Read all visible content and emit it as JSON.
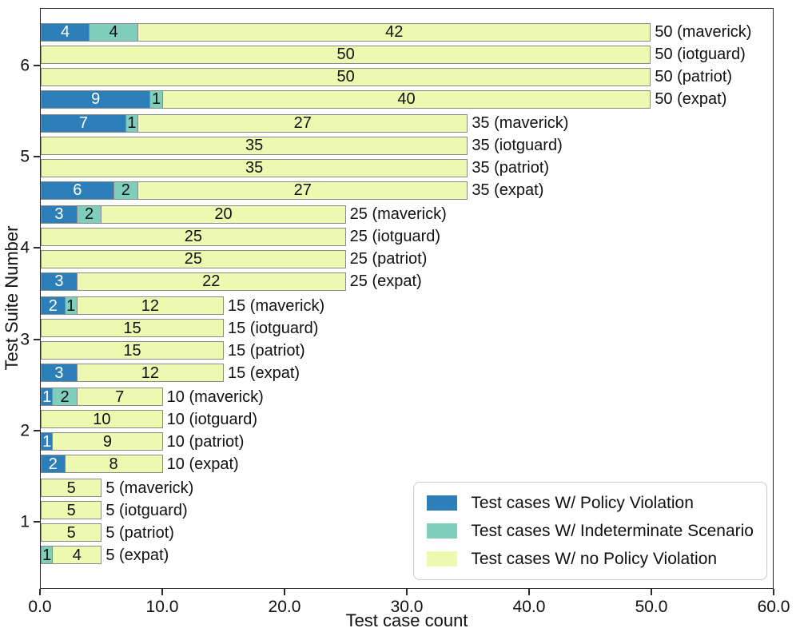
{
  "chart_data": {
    "type": "bar",
    "orientation": "horizontal",
    "stacked": true,
    "title": "",
    "xlabel": "Test case count",
    "ylabel": "Test Suite Number",
    "xlim": [
      0,
      60
    ],
    "grid": false,
    "legend_position": "lower right",
    "xticks": [
      {
        "value": 0,
        "label": "0.0"
      },
      {
        "value": 10,
        "label": "10.0"
      },
      {
        "value": 20,
        "label": "20.0"
      },
      {
        "value": 30,
        "label": "30.0"
      },
      {
        "value": 40,
        "label": "40.0"
      },
      {
        "value": 50,
        "label": "50.0"
      },
      {
        "value": 60,
        "label": "60.0"
      }
    ],
    "series_names": [
      "Test cases W/ Policy Violation",
      "Test cases W/ Indeterminate Scenario",
      "Test cases W/ no Policy Violation"
    ],
    "series_keys": [
      "policy-violation",
      "indeterminate-scenario",
      "no-policy-violation"
    ],
    "colors": [
      "#2c7fb8",
      "#7fcdbb",
      "#edf8b1"
    ],
    "label_colors": [
      "#ffffff",
      "#111111",
      "#111111"
    ],
    "tools": [
      "maverick",
      "iotguard",
      "patriot",
      "expat"
    ],
    "groups": [
      {
        "suite": "6",
        "bars": [
          {
            "tool": "maverick",
            "values": [
              4,
              4,
              42
            ],
            "total": 50,
            "total_label": "50 (maverick)"
          },
          {
            "tool": "iotguard",
            "values": [
              0,
              0,
              50
            ],
            "total": 50,
            "total_label": "50 (iotguard)"
          },
          {
            "tool": "patriot",
            "values": [
              0,
              0,
              50
            ],
            "total": 50,
            "total_label": "50 (patriot)"
          },
          {
            "tool": "expat",
            "values": [
              9,
              1,
              40
            ],
            "total": 50,
            "total_label": "50 (expat)"
          }
        ]
      },
      {
        "suite": "5",
        "bars": [
          {
            "tool": "maverick",
            "values": [
              7,
              1,
              27
            ],
            "total": 35,
            "total_label": "35 (maverick)"
          },
          {
            "tool": "iotguard",
            "values": [
              0,
              0,
              35
            ],
            "total": 35,
            "total_label": "35 (iotguard)"
          },
          {
            "tool": "patriot",
            "values": [
              0,
              0,
              35
            ],
            "total": 35,
            "total_label": "35 (patriot)"
          },
          {
            "tool": "expat",
            "values": [
              6,
              2,
              27
            ],
            "total": 35,
            "total_label": "35 (expat)"
          }
        ]
      },
      {
        "suite": "4",
        "bars": [
          {
            "tool": "maverick",
            "values": [
              3,
              2,
              20
            ],
            "total": 25,
            "total_label": "25 (maverick)"
          },
          {
            "tool": "iotguard",
            "values": [
              0,
              0,
              25
            ],
            "total": 25,
            "total_label": "25 (iotguard)"
          },
          {
            "tool": "patriot",
            "values": [
              0,
              0,
              25
            ],
            "total": 25,
            "total_label": "25 (patriot)"
          },
          {
            "tool": "expat",
            "values": [
              3,
              0,
              22
            ],
            "total": 25,
            "total_label": "25 (expat)"
          }
        ]
      },
      {
        "suite": "3",
        "bars": [
          {
            "tool": "maverick",
            "values": [
              2,
              1,
              12
            ],
            "total": 15,
            "total_label": "15 (maverick)"
          },
          {
            "tool": "iotguard",
            "values": [
              0,
              0,
              15
            ],
            "total": 15,
            "total_label": "15 (iotguard)"
          },
          {
            "tool": "patriot",
            "values": [
              0,
              0,
              15
            ],
            "total": 15,
            "total_label": "15 (patriot)"
          },
          {
            "tool": "expat",
            "values": [
              3,
              0,
              12
            ],
            "total": 15,
            "total_label": "15 (expat)"
          }
        ]
      },
      {
        "suite": "2",
        "bars": [
          {
            "tool": "maverick",
            "values": [
              1,
              2,
              7
            ],
            "total": 10,
            "total_label": "10 (maverick)"
          },
          {
            "tool": "iotguard",
            "values": [
              0,
              0,
              10
            ],
            "total": 10,
            "total_label": "10 (iotguard)"
          },
          {
            "tool": "patriot",
            "values": [
              1,
              0,
              9
            ],
            "total": 10,
            "total_label": "10 (patriot)"
          },
          {
            "tool": "expat",
            "values": [
              2,
              0,
              8
            ],
            "total": 10,
            "total_label": "10 (expat)"
          }
        ]
      },
      {
        "suite": "1",
        "bars": [
          {
            "tool": "maverick",
            "values": [
              0,
              0,
              5
            ],
            "total": 5,
            "total_label": "5 (maverick)"
          },
          {
            "tool": "iotguard",
            "values": [
              0,
              0,
              5
            ],
            "total": 5,
            "total_label": "5 (iotguard)"
          },
          {
            "tool": "patriot",
            "values": [
              0,
              0,
              5
            ],
            "total": 5,
            "total_label": "5 (patriot)"
          },
          {
            "tool": "expat",
            "values": [
              0,
              1,
              4
            ],
            "total": 5,
            "total_label": "5 (expat)"
          }
        ]
      }
    ]
  }
}
